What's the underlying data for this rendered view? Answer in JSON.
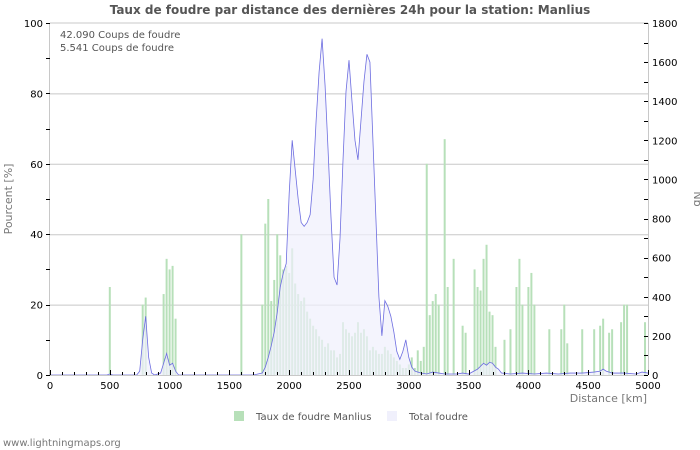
{
  "chart_data": {
    "type": "bar",
    "title": "Taux de foudre par distance des dernières 24h pour la station: Manlius",
    "xlabel": "Distance   [km]",
    "ylabel": "Pourcent   [%]",
    "ylabel_right": "Nb",
    "xlim": [
      0,
      5000
    ],
    "ylim": [
      0,
      100
    ],
    "ylim_right": [
      0,
      1800
    ],
    "x_ticks": [
      0,
      500,
      1000,
      1500,
      2000,
      2500,
      3000,
      3500,
      4000,
      4500,
      5000
    ],
    "y_ticks": [
      0,
      20,
      40,
      60,
      80,
      100
    ],
    "y_ticks_right": [
      0,
      200,
      400,
      600,
      800,
      1000,
      1200,
      1400,
      1600,
      1800
    ],
    "grid": true,
    "legend_position": "bottom",
    "bin_km": 25,
    "series": [
      {
        "name": "Taux de foudre Manlius",
        "axis": "left",
        "type": "bar",
        "color": "#b7e0b9",
        "points": [
          [
            500,
            25
          ],
          [
            775,
            20
          ],
          [
            800,
            22
          ],
          [
            950,
            23
          ],
          [
            975,
            33
          ],
          [
            1000,
            30
          ],
          [
            1025,
            31
          ],
          [
            1050,
            16
          ],
          [
            1600,
            40
          ],
          [
            1775,
            20
          ],
          [
            1800,
            43
          ],
          [
            1825,
            50
          ],
          [
            1850,
            21
          ],
          [
            1875,
            27
          ],
          [
            1900,
            40
          ],
          [
            1925,
            34
          ],
          [
            1950,
            30
          ],
          [
            1975,
            31
          ],
          [
            2000,
            29
          ],
          [
            2025,
            36
          ],
          [
            2050,
            26
          ],
          [
            2075,
            23
          ],
          [
            2100,
            21
          ],
          [
            2125,
            22
          ],
          [
            2150,
            18
          ],
          [
            2175,
            16
          ],
          [
            2200,
            14
          ],
          [
            2225,
            13
          ],
          [
            2250,
            11
          ],
          [
            2275,
            10
          ],
          [
            2300,
            8
          ],
          [
            2325,
            9
          ],
          [
            2350,
            7
          ],
          [
            2375,
            7
          ],
          [
            2400,
            5
          ],
          [
            2425,
            6
          ],
          [
            2450,
            15
          ],
          [
            2475,
            13
          ],
          [
            2500,
            12
          ],
          [
            2525,
            11
          ],
          [
            2550,
            12
          ],
          [
            2575,
            15
          ],
          [
            2600,
            12
          ],
          [
            2625,
            13
          ],
          [
            2650,
            11
          ],
          [
            2675,
            7
          ],
          [
            2700,
            8
          ],
          [
            2725,
            7
          ],
          [
            2750,
            6
          ],
          [
            2775,
            6
          ],
          [
            2800,
            8
          ],
          [
            2825,
            7
          ],
          [
            2850,
            6
          ],
          [
            2875,
            5
          ],
          [
            2900,
            4
          ],
          [
            2925,
            3
          ],
          [
            2950,
            2
          ],
          [
            2975,
            2
          ],
          [
            3000,
            3
          ],
          [
            3025,
            5
          ],
          [
            3050,
            2
          ],
          [
            3075,
            7
          ],
          [
            3100,
            4
          ],
          [
            3125,
            8
          ],
          [
            3150,
            60
          ],
          [
            3175,
            17
          ],
          [
            3200,
            21
          ],
          [
            3225,
            23
          ],
          [
            3250,
            20
          ],
          [
            3300,
            67
          ],
          [
            3325,
            25
          ],
          [
            3375,
            33
          ],
          [
            3450,
            14
          ],
          [
            3475,
            12
          ],
          [
            3550,
            30
          ],
          [
            3575,
            25
          ],
          [
            3600,
            24
          ],
          [
            3625,
            33
          ],
          [
            3650,
            37
          ],
          [
            3675,
            18
          ],
          [
            3700,
            17
          ],
          [
            3725,
            8
          ],
          [
            3800,
            10
          ],
          [
            3850,
            13
          ],
          [
            3900,
            25
          ],
          [
            3925,
            33
          ],
          [
            3950,
            20
          ],
          [
            4000,
            25
          ],
          [
            4025,
            29
          ],
          [
            4050,
            20
          ],
          [
            4175,
            13
          ],
          [
            4275,
            13
          ],
          [
            4300,
            20
          ],
          [
            4325,
            9
          ],
          [
            4450,
            13
          ],
          [
            4550,
            13
          ],
          [
            4600,
            14
          ],
          [
            4625,
            16
          ],
          [
            4675,
            12
          ],
          [
            4700,
            13
          ],
          [
            4775,
            15
          ],
          [
            4800,
            20
          ],
          [
            4825,
            20
          ],
          [
            4975,
            15
          ]
        ]
      },
      {
        "name": "Total foudre",
        "axis": "right",
        "type": "area",
        "color": "#6d6de0",
        "fill": "#f0f0fc",
        "points": [
          [
            0,
            0
          ],
          [
            475,
            0
          ],
          [
            500,
            5
          ],
          [
            525,
            0
          ],
          [
            725,
            0
          ],
          [
            750,
            20
          ],
          [
            775,
            180
          ],
          [
            800,
            300
          ],
          [
            825,
            90
          ],
          [
            850,
            10
          ],
          [
            875,
            0
          ],
          [
            925,
            10
          ],
          [
            950,
            60
          ],
          [
            975,
            110
          ],
          [
            1000,
            50
          ],
          [
            1025,
            60
          ],
          [
            1050,
            20
          ],
          [
            1075,
            0
          ],
          [
            1700,
            0
          ],
          [
            1775,
            10
          ],
          [
            1800,
            40
          ],
          [
            1825,
            90
          ],
          [
            1850,
            150
          ],
          [
            1875,
            220
          ],
          [
            1900,
            320
          ],
          [
            1925,
            450
          ],
          [
            1950,
            520
          ],
          [
            1975,
            570
          ],
          [
            2000,
            930
          ],
          [
            2025,
            1200
          ],
          [
            2050,
            1050
          ],
          [
            2075,
            900
          ],
          [
            2100,
            780
          ],
          [
            2125,
            760
          ],
          [
            2150,
            780
          ],
          [
            2175,
            820
          ],
          [
            2200,
            1000
          ],
          [
            2225,
            1300
          ],
          [
            2250,
            1550
          ],
          [
            2275,
            1720
          ],
          [
            2300,
            1480
          ],
          [
            2325,
            1150
          ],
          [
            2350,
            800
          ],
          [
            2375,
            500
          ],
          [
            2400,
            460
          ],
          [
            2425,
            700
          ],
          [
            2450,
            1100
          ],
          [
            2475,
            1450
          ],
          [
            2500,
            1610
          ],
          [
            2525,
            1400
          ],
          [
            2550,
            1200
          ],
          [
            2575,
            1100
          ],
          [
            2600,
            1300
          ],
          [
            2625,
            1500
          ],
          [
            2650,
            1640
          ],
          [
            2675,
            1600
          ],
          [
            2700,
            1200
          ],
          [
            2725,
            800
          ],
          [
            2750,
            400
          ],
          [
            2775,
            200
          ],
          [
            2800,
            380
          ],
          [
            2825,
            350
          ],
          [
            2850,
            300
          ],
          [
            2875,
            220
          ],
          [
            2900,
            120
          ],
          [
            2925,
            80
          ],
          [
            2950,
            120
          ],
          [
            2975,
            180
          ],
          [
            3000,
            90
          ],
          [
            3025,
            40
          ],
          [
            3050,
            20
          ],
          [
            3075,
            15
          ],
          [
            3100,
            10
          ],
          [
            3150,
            5
          ],
          [
            3200,
            15
          ],
          [
            3250,
            10
          ],
          [
            3300,
            5
          ],
          [
            3400,
            5
          ],
          [
            3450,
            10
          ],
          [
            3500,
            5
          ],
          [
            3575,
            30
          ],
          [
            3600,
            45
          ],
          [
            3625,
            60
          ],
          [
            3650,
            50
          ],
          [
            3675,
            65
          ],
          [
            3700,
            60
          ],
          [
            3725,
            40
          ],
          [
            3750,
            30
          ],
          [
            3775,
            10
          ],
          [
            3850,
            5
          ],
          [
            3950,
            10
          ],
          [
            4050,
            5
          ],
          [
            4150,
            10
          ],
          [
            4250,
            5
          ],
          [
            4350,
            10
          ],
          [
            4450,
            10
          ],
          [
            4550,
            15
          ],
          [
            4600,
            20
          ],
          [
            4625,
            30
          ],
          [
            4650,
            20
          ],
          [
            4700,
            10
          ],
          [
            4800,
            10
          ],
          [
            4900,
            5
          ],
          [
            4950,
            15
          ],
          [
            5000,
            10
          ]
        ]
      }
    ],
    "annotations": [
      "42.090  Coups de foudre",
      "5.541  Coups de foudre"
    ]
  },
  "header": {
    "title": "Taux de foudre par distance des dernières 24h pour la station: Manlius"
  },
  "info": {
    "line1": "42.090  Coups de foudre",
    "line2": "5.541  Coups de foudre"
  },
  "legend": {
    "item1": "Taux de foudre Manlius",
    "item2": "Total foudre"
  },
  "footer": {
    "source": "www.lightningmaps.org"
  },
  "colors": {
    "bars": "#b7e0b9",
    "line": "#6d6de0",
    "area": "#f0f0fc",
    "grid": "#c8c8c8"
  }
}
